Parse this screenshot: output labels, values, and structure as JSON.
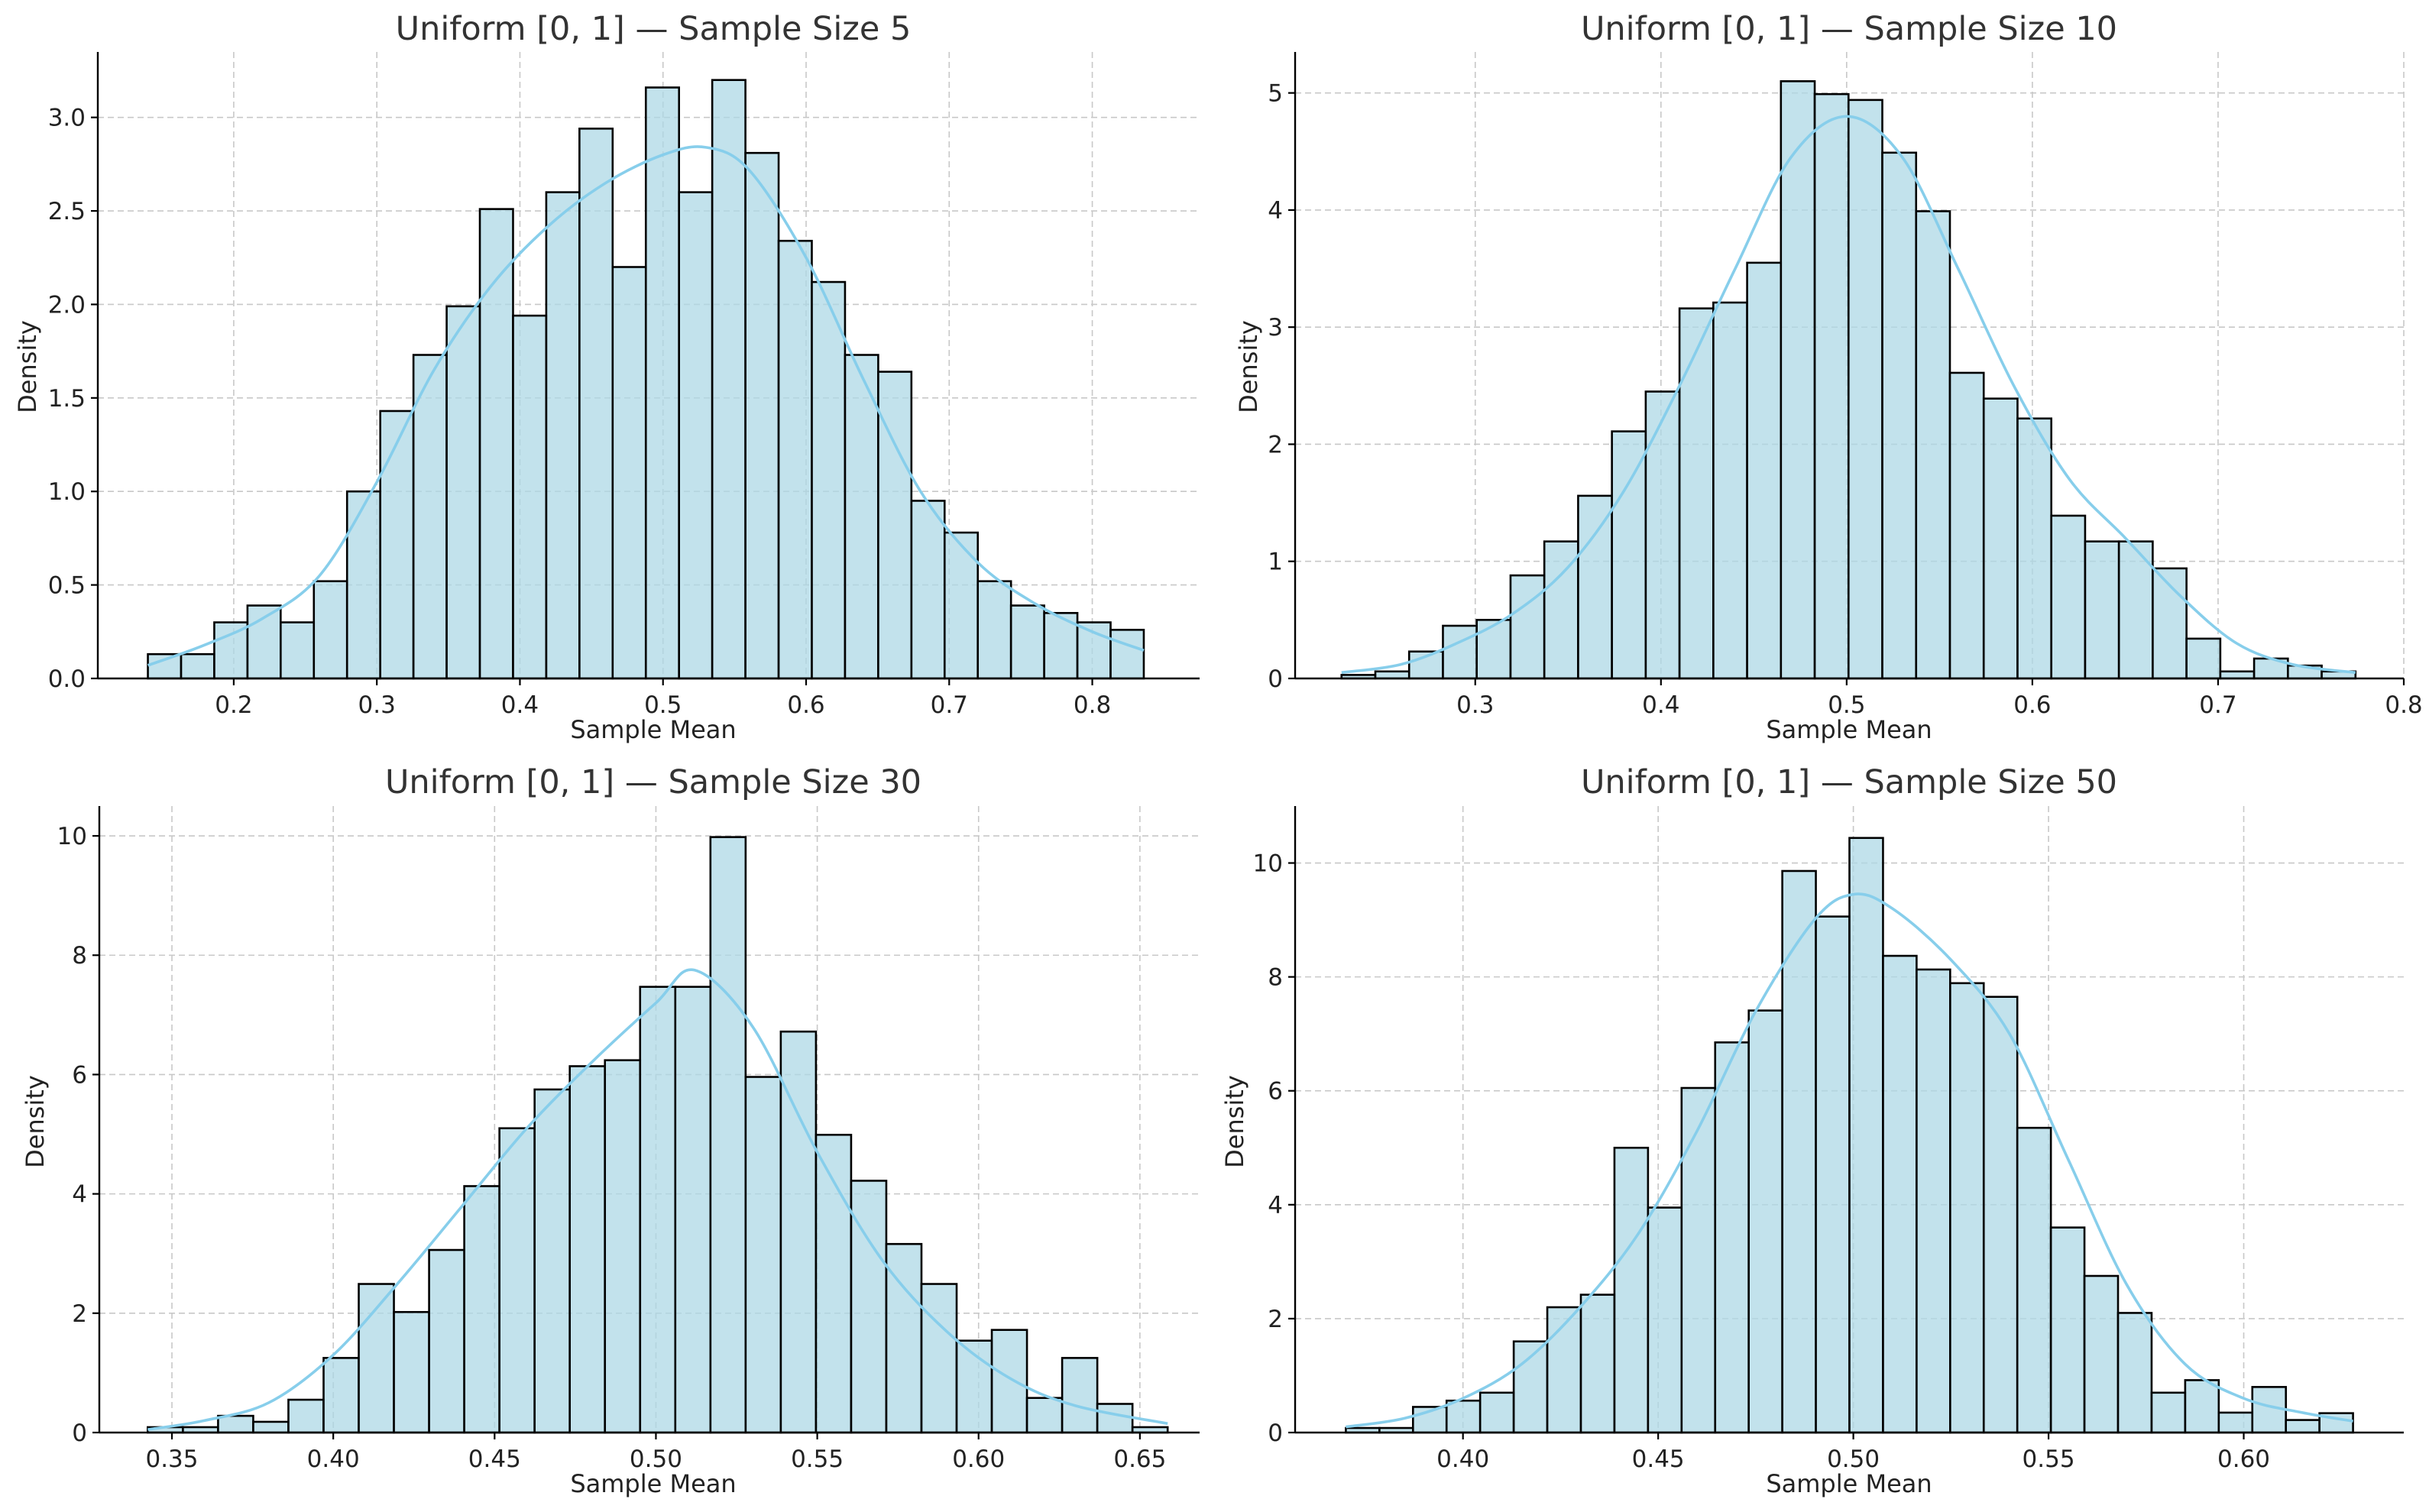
{
  "colors": {
    "bar_fill": "#add8e6",
    "bar_edge": "#000000",
    "kde_line": "#87ceeb",
    "grid": "#c8c8c8"
  },
  "chart_data": [
    {
      "type": "bar",
      "subtype": "histogram-with-kde",
      "title": "Uniform [0, 1] — Sample Size 5",
      "xlabel": "Sample Mean",
      "ylabel": "Density",
      "grid": true,
      "xlim": [
        0.105,
        0.875
      ],
      "ylim": [
        0,
        3.35
      ],
      "xticks": [
        0.2,
        0.3,
        0.4,
        0.5,
        0.6,
        0.7,
        0.8
      ],
      "xtick_labels": [
        "0.2",
        "0.3",
        "0.4",
        "0.5",
        "0.6",
        "0.7",
        "0.8"
      ],
      "yticks": [
        0,
        0.5,
        1.0,
        1.5,
        2.0,
        2.5,
        3.0
      ],
      "ytick_labels": [
        "0.0",
        "0.5",
        "1.0",
        "1.5",
        "2.0",
        "2.5",
        "3.0"
      ],
      "bin_edges": [
        0.14,
        0.1632,
        0.1864,
        0.2096,
        0.2328,
        0.256,
        0.2792,
        0.3024,
        0.3256,
        0.3488,
        0.372,
        0.3952,
        0.4184,
        0.4416,
        0.4648,
        0.488,
        0.5112,
        0.5344,
        0.5576,
        0.5808,
        0.604,
        0.6272,
        0.6504,
        0.6736,
        0.6968,
        0.72,
        0.7432,
        0.7664,
        0.7896,
        0.8128,
        0.836
      ],
      "values": [
        0.13,
        0.13,
        0.3,
        0.39,
        0.3,
        0.52,
        1.0,
        1.43,
        1.73,
        1.99,
        2.51,
        1.94,
        2.6,
        2.94,
        2.2,
        3.16,
        2.6,
        3.2,
        2.81,
        2.34,
        2.12,
        1.73,
        1.64,
        0.95,
        0.78,
        0.52,
        0.39,
        0.35,
        0.3,
        0.26
      ],
      "kde_x": [
        0.14,
        0.18,
        0.22,
        0.26,
        0.3,
        0.34,
        0.38,
        0.42,
        0.46,
        0.5,
        0.53,
        0.56,
        0.6,
        0.64,
        0.68,
        0.72,
        0.76,
        0.8,
        0.836
      ],
      "kde_y": [
        0.07,
        0.18,
        0.32,
        0.55,
        1.05,
        1.65,
        2.1,
        2.42,
        2.65,
        2.8,
        2.84,
        2.72,
        2.25,
        1.6,
        1.0,
        0.62,
        0.4,
        0.25,
        0.15
      ]
    },
    {
      "type": "bar",
      "subtype": "histogram-with-kde",
      "title": "Uniform [0, 1] — Sample Size 10",
      "xlabel": "Sample Mean",
      "ylabel": "Density",
      "grid": true,
      "xlim": [
        0.203,
        0.8
      ],
      "ylim": [
        0,
        5.35
      ],
      "xticks": [
        0.3,
        0.4,
        0.5,
        0.6,
        0.7,
        0.8
      ],
      "xtick_labels": [
        "0.3",
        "0.4",
        "0.5",
        "0.6",
        "0.7",
        "0.8"
      ],
      "yticks": [
        0,
        1,
        2,
        3,
        4,
        5
      ],
      "ytick_labels": [
        "0",
        "1",
        "2",
        "3",
        "4",
        "5"
      ],
      "bin_edges": [
        0.228,
        0.2462,
        0.2644,
        0.2826,
        0.3008,
        0.319,
        0.3372,
        0.3554,
        0.3736,
        0.3918,
        0.41,
        0.4282,
        0.4464,
        0.4646,
        0.4828,
        0.501,
        0.5192,
        0.5374,
        0.5556,
        0.5738,
        0.592,
        0.6102,
        0.6284,
        0.6466,
        0.6648,
        0.683,
        0.7012,
        0.7194,
        0.7376,
        0.7558,
        0.774
      ],
      "values": [
        0.03,
        0.06,
        0.23,
        0.45,
        0.5,
        0.88,
        1.17,
        1.56,
        2.11,
        2.45,
        3.16,
        3.21,
        3.55,
        5.1,
        4.99,
        4.94,
        4.49,
        3.99,
        2.61,
        2.39,
        2.22,
        1.39,
        1.17,
        1.17,
        0.94,
        0.34,
        0.06,
        0.17,
        0.11,
        0.06
      ],
      "kde_x": [
        0.228,
        0.26,
        0.29,
        0.32,
        0.35,
        0.38,
        0.41,
        0.44,
        0.47,
        0.5,
        0.53,
        0.56,
        0.59,
        0.62,
        0.65,
        0.68,
        0.71,
        0.74,
        0.774
      ],
      "kde_y": [
        0.05,
        0.12,
        0.3,
        0.55,
        0.95,
        1.6,
        2.5,
        3.5,
        4.45,
        4.8,
        4.45,
        3.5,
        2.5,
        1.7,
        1.2,
        0.7,
        0.3,
        0.12,
        0.05
      ]
    },
    {
      "type": "bar",
      "subtype": "histogram-with-kde",
      "title": "Uniform [0, 1] — Sample Size 30",
      "xlabel": "Sample Mean",
      "ylabel": "Density",
      "grid": true,
      "xlim": [
        0.3275,
        0.6685
      ],
      "ylim": [
        0,
        10.5
      ],
      "xticks": [
        0.35,
        0.4,
        0.45,
        0.5,
        0.55,
        0.6,
        0.65
      ],
      "xtick_labels": [
        "0.35",
        "0.40",
        "0.45",
        "0.50",
        "0.55",
        "0.60",
        "0.65"
      ],
      "yticks": [
        0,
        2,
        4,
        6,
        8,
        10
      ],
      "ytick_labels": [
        "0",
        "2",
        "4",
        "6",
        "8",
        "10"
      ],
      "bin_edges": [
        0.3425,
        0.3534,
        0.3643,
        0.3752,
        0.3861,
        0.397,
        0.4079,
        0.4188,
        0.4297,
        0.4406,
        0.4515,
        0.4624,
        0.4733,
        0.4842,
        0.4951,
        0.506,
        0.5169,
        0.5278,
        0.5387,
        0.5496,
        0.5605,
        0.5714,
        0.5823,
        0.5932,
        0.6041,
        0.615,
        0.6259,
        0.6368,
        0.6477,
        0.6586
      ],
      "values": [
        0.09,
        0.09,
        0.28,
        0.18,
        0.55,
        1.25,
        2.49,
        2.02,
        3.06,
        4.13,
        5.1,
        5.75,
        6.14,
        6.24,
        7.47,
        7.47,
        9.98,
        5.96,
        6.72,
        4.99,
        4.22,
        3.16,
        2.49,
        1.54,
        1.72,
        0.58,
        1.25,
        0.48,
        0.09,
        0.37
      ],
      "kde_x": [
        0.3425,
        0.36,
        0.38,
        0.4,
        0.42,
        0.44,
        0.46,
        0.48,
        0.5,
        0.512,
        0.53,
        0.55,
        0.57,
        0.59,
        0.61,
        0.63,
        0.6586
      ],
      "kde_y": [
        0.05,
        0.2,
        0.5,
        1.3,
        2.5,
        3.8,
        5.1,
        6.2,
        7.2,
        7.75,
        6.8,
        4.7,
        2.9,
        1.7,
        0.9,
        0.45,
        0.15
      ]
    },
    {
      "type": "bar",
      "subtype": "histogram-with-kde",
      "title": "Uniform [0, 1] — Sample Size 50",
      "xlabel": "Sample Mean",
      "ylabel": "Density",
      "grid": true,
      "xlim": [
        0.357,
        0.641
      ],
      "ylim": [
        0,
        11.0
      ],
      "xticks": [
        0.4,
        0.45,
        0.5,
        0.55,
        0.6
      ],
      "xtick_labels": [
        "0.40",
        "0.45",
        "0.50",
        "0.55",
        "0.60"
      ],
      "yticks": [
        0,
        2,
        4,
        6,
        8,
        10
      ],
      "ytick_labels": [
        "0",
        "2",
        "4",
        "6",
        "8",
        "10"
      ],
      "bin_edges": [
        0.37,
        0.3786,
        0.3872,
        0.3958,
        0.4044,
        0.413,
        0.4216,
        0.4302,
        0.4388,
        0.4474,
        0.456,
        0.4646,
        0.4732,
        0.4818,
        0.4904,
        0.499,
        0.5076,
        0.5162,
        0.5248,
        0.5334,
        0.542,
        0.5506,
        0.5592,
        0.5678,
        0.5764,
        0.585,
        0.5936,
        0.6022,
        0.6108,
        0.6194,
        0.628
      ],
      "values": [
        0.08,
        0.08,
        0.45,
        0.56,
        0.7,
        1.6,
        2.2,
        2.42,
        5.0,
        3.95,
        6.05,
        6.85,
        7.41,
        9.86,
        9.06,
        10.44,
        8.37,
        8.13,
        7.89,
        7.65,
        5.35,
        3.6,
        2.75,
        2.1,
        0.7,
        0.92,
        0.35,
        0.8,
        0.22,
        0.34
      ],
      "kde_x": [
        0.37,
        0.385,
        0.4,
        0.415,
        0.43,
        0.445,
        0.46,
        0.475,
        0.49,
        0.5,
        0.51,
        0.525,
        0.54,
        0.555,
        0.57,
        0.585,
        0.6,
        0.615,
        0.628
      ],
      "kde_y": [
        0.1,
        0.25,
        0.6,
        1.2,
        2.2,
        3.5,
        5.3,
        7.4,
        9.0,
        9.45,
        9.2,
        8.3,
        7.0,
        4.8,
        2.6,
        1.2,
        0.6,
        0.35,
        0.2
      ]
    }
  ]
}
